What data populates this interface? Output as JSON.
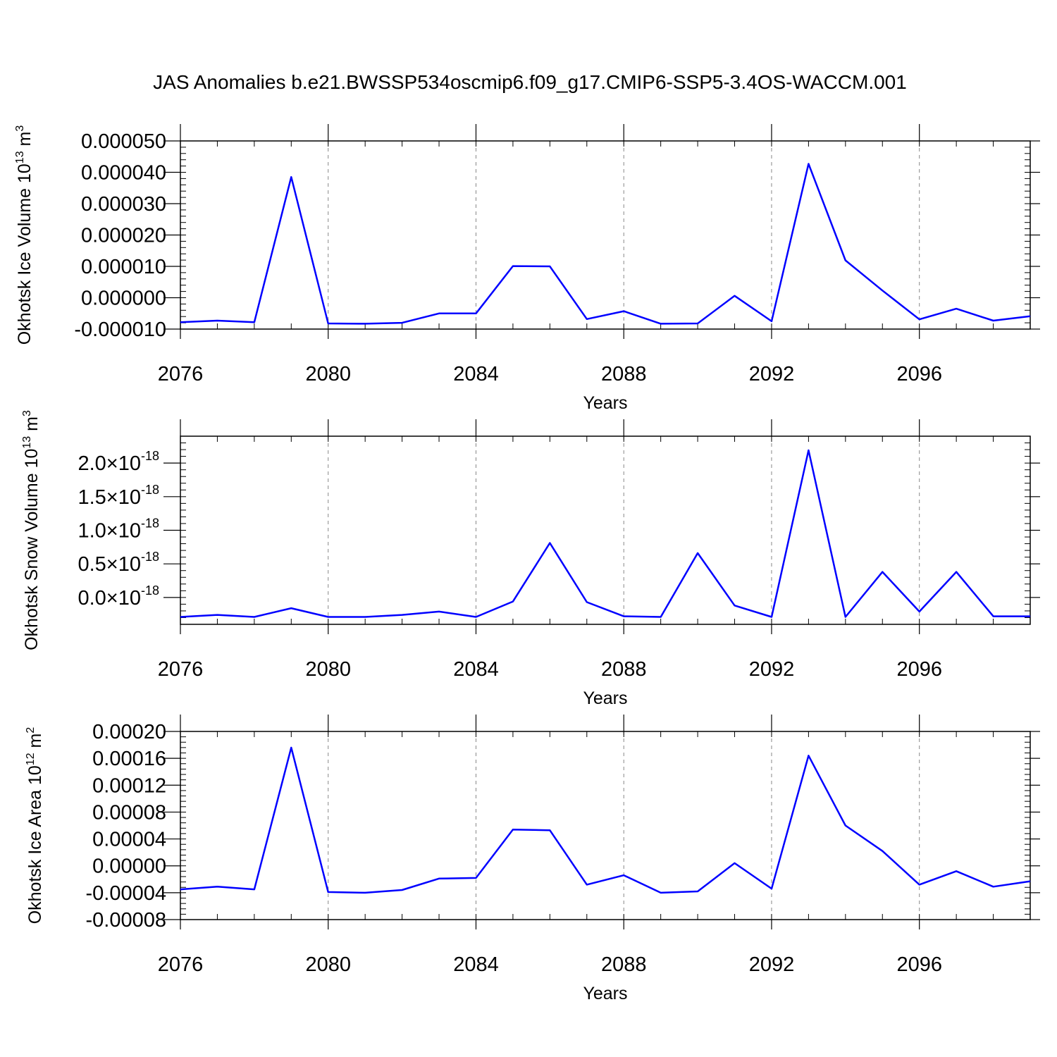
{
  "figure": {
    "title": "JAS Anomalies b.e21.BWSSP534oscmip6.f09_g17.CMIP6-SSP5-3.4OS-WACCM.001"
  },
  "colors": {
    "line": "#0000ff",
    "axis": "#000000",
    "grid": "#888888"
  },
  "chart_data": [
    {
      "type": "line",
      "ylabel": "Okhotsk Ice Volume 10",
      "ylabel_exp": "13",
      "ylabel_unit": "m",
      "ylabel_unit_exp": "3",
      "xlabel": "Years",
      "xlim": [
        2076,
        2099
      ],
      "ylim": [
        -1e-05,
        5e-05
      ],
      "x_ticks": [
        2076,
        2080,
        2084,
        2088,
        2092,
        2096
      ],
      "x_tick_labels": [
        "2076",
        "2080",
        "2084",
        "2088",
        "2092",
        "2096"
      ],
      "y_ticks": [
        -1e-05,
        0.0,
        1e-05,
        2e-05,
        3e-05,
        4e-05,
        5e-05
      ],
      "y_tick_labels": [
        "-0.000010",
        "0.000000",
        "0.000010",
        "0.000020",
        "0.000030",
        "0.000040",
        "0.000050"
      ],
      "y_tick_exponents": [],
      "vgrid": [
        2080,
        2084,
        2088,
        2092,
        2096
      ],
      "x": [
        2076,
        2077,
        2078,
        2079,
        2080,
        2081,
        2082,
        2083,
        2084,
        2085,
        2086,
        2087,
        2088,
        2089,
        2090,
        2091,
        2092,
        2093,
        2094,
        2095,
        2096,
        2097,
        2098,
        2099
      ],
      "y": [
        -7.8e-06,
        -7.3e-06,
        -7.8e-06,
        3.85e-05,
        -8.2e-06,
        -8.3e-06,
        -8e-06,
        -5e-06,
        -5e-06,
        1.01e-05,
        1e-05,
        -6.8e-06,
        -4.3e-06,
        -8.3e-06,
        -8.2e-06,
        6e-07,
        -7.5e-06,
        4.27e-05,
        1.19e-05,
        2.3e-06,
        -6.9e-06,
        -3.5e-06,
        -7.3e-06,
        -5.9e-06
      ]
    },
    {
      "type": "line",
      "ylabel": "Okhotsk Snow Volume 10",
      "ylabel_exp": "13",
      "ylabel_unit": "m",
      "ylabel_unit_exp": "3",
      "xlabel": "Years",
      "xlim": [
        2076,
        2099
      ],
      "ylim": [
        -0.4,
        2.4
      ],
      "x_ticks": [
        2076,
        2080,
        2084,
        2088,
        2092,
        2096
      ],
      "x_tick_labels": [
        "2076",
        "2080",
        "2084",
        "2088",
        "2092",
        "2096"
      ],
      "y_ticks": [
        0.0,
        0.5,
        1.0,
        1.5,
        2.0
      ],
      "y_tick_labels": [
        "0.0×10",
        "0.5×10",
        "1.0×10",
        "1.5×10",
        "2.0×10"
      ],
      "y_tick_exponents": [
        "-18",
        "-18",
        "-18",
        "-18",
        "-18"
      ],
      "vgrid": [
        2080,
        2084,
        2088,
        2092,
        2096
      ],
      "x": [
        2076,
        2077,
        2078,
        2079,
        2080,
        2081,
        2082,
        2083,
        2084,
        2085,
        2086,
        2087,
        2088,
        2089,
        2090,
        2091,
        2092,
        2093,
        2094,
        2095,
        2096,
        2097,
        2098,
        2099
      ],
      "y": [
        -0.29,
        -0.26,
        -0.29,
        -0.16,
        -0.29,
        -0.29,
        -0.26,
        -0.21,
        -0.29,
        -0.06,
        0.81,
        -0.07,
        -0.28,
        -0.29,
        0.66,
        -0.12,
        -0.29,
        2.19,
        -0.29,
        0.38,
        -0.21,
        0.38,
        -0.28,
        -0.28
      ]
    },
    {
      "type": "line",
      "ylabel": "Okhotsk Ice Area 10",
      "ylabel_exp": "12",
      "ylabel_unit": "m",
      "ylabel_unit_exp": "2",
      "xlabel": "Years",
      "xlim": [
        2076,
        2099
      ],
      "ylim": [
        -8e-05,
        0.0002
      ],
      "x_ticks": [
        2076,
        2080,
        2084,
        2088,
        2092,
        2096
      ],
      "x_tick_labels": [
        "2076",
        "2080",
        "2084",
        "2088",
        "2092",
        "2096"
      ],
      "y_ticks": [
        -8e-05,
        -4e-05,
        0.0,
        4e-05,
        8e-05,
        0.00012,
        0.00016,
        0.0002
      ],
      "y_tick_labels": [
        "-0.00008",
        "-0.00004",
        "0.00000",
        "0.00004",
        "0.00008",
        "0.00012",
        "0.00016",
        "0.00020"
      ],
      "y_tick_exponents": [],
      "vgrid": [
        2080,
        2084,
        2088,
        2092,
        2096
      ],
      "x": [
        2076,
        2077,
        2078,
        2079,
        2080,
        2081,
        2082,
        2083,
        2084,
        2085,
        2086,
        2087,
        2088,
        2089,
        2090,
        2091,
        2092,
        2093,
        2094,
        2095,
        2096,
        2097,
        2098,
        2099
      ],
      "y": [
        -3.5e-05,
        -3.1e-05,
        -3.5e-05,
        0.000176,
        -3.9e-05,
        -4e-05,
        -3.6e-05,
        -1.9e-05,
        -1.8e-05,
        5.4e-05,
        5.3e-05,
        -2.8e-05,
        -1.4e-05,
        -4e-05,
        -3.8e-05,
        4e-06,
        -3.4e-05,
        0.000164,
        6e-05,
        2.2e-05,
        -2.8e-05,
        -8e-06,
        -3.1e-05,
        -2.3e-05
      ]
    }
  ]
}
